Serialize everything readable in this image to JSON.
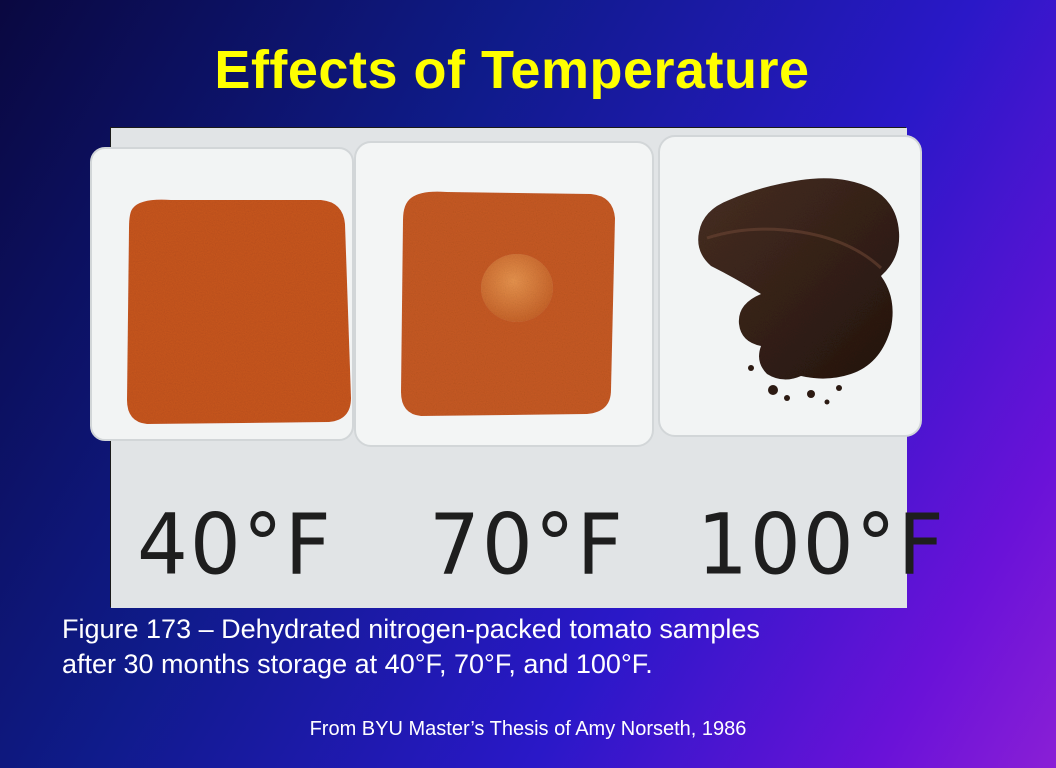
{
  "slide": {
    "title": "Effects of Temperature",
    "caption_line1": "Figure 173 – Dehydrated nitrogen-packed tomato samples",
    "caption_line2": "after 30 months storage at 40°F, 70°F, and 100°F.",
    "source": "From BYU Master’s Thesis of Amy Norseth, 1986"
  },
  "photo": {
    "labels": [
      "40°F",
      "70°F",
      "100°F"
    ]
  },
  "colors": {
    "title": "#ffff00",
    "text": "#ffffff",
    "powder": "#c8561e",
    "spoiled": "#3a2418"
  }
}
